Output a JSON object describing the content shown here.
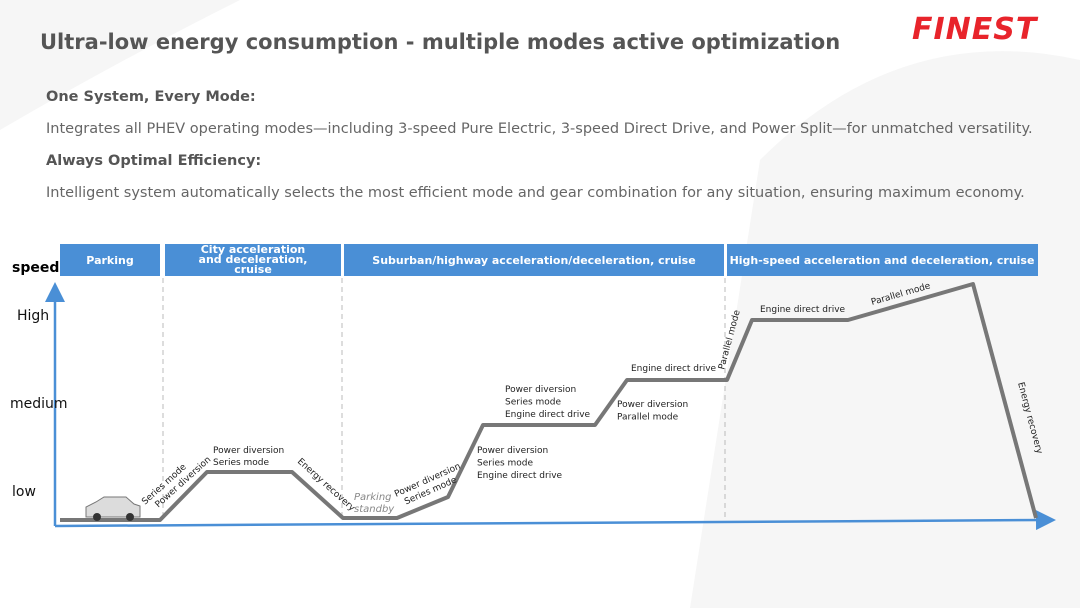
{
  "header": {
    "title": "Ultra-low energy consumption - multiple modes active optimization",
    "logo": "FINEST"
  },
  "intro": [
    {
      "heading": "One System, Every Mode:",
      "text": "Integrates all PHEV operating modes—including 3-speed Pure Electric, 3-speed Direct Drive, and Power Split—for unmatched versatility."
    },
    {
      "heading": "Always Optimal Efficiency:",
      "text": "Intelligent system automatically selects the most efficient mode and gear combination for any situation, ensuring maximum economy."
    }
  ],
  "diagram": {
    "axis_label": "speed",
    "levels": [
      "High",
      "medium",
      "low"
    ],
    "phases": [
      "Parking",
      "City acceleration and deceleration, cruise",
      "Suburban/highway acceleration/deceleration, cruise",
      "High-speed acceleration and deceleration, cruise"
    ],
    "annotations": [
      [
        "Series mode",
        "Power diversion"
      ],
      [
        "Power diversion",
        "Series mode"
      ],
      [
        "Energy recovery"
      ],
      [
        "Parking",
        "standby"
      ],
      [
        "Power diversion",
        "Series mode"
      ],
      [
        "Power diversion",
        "Series mode",
        "Engine direct drive"
      ],
      [
        "Power diversion",
        "Series mode",
        "Engine direct drive"
      ],
      [
        "Power diversion",
        "Parallel mode"
      ],
      [
        "Engine direct drive"
      ],
      [
        "Parallel mode"
      ],
      [
        "Engine direct drive"
      ],
      [
        "Parallel mode"
      ],
      [
        "Energy recovery"
      ]
    ]
  }
}
